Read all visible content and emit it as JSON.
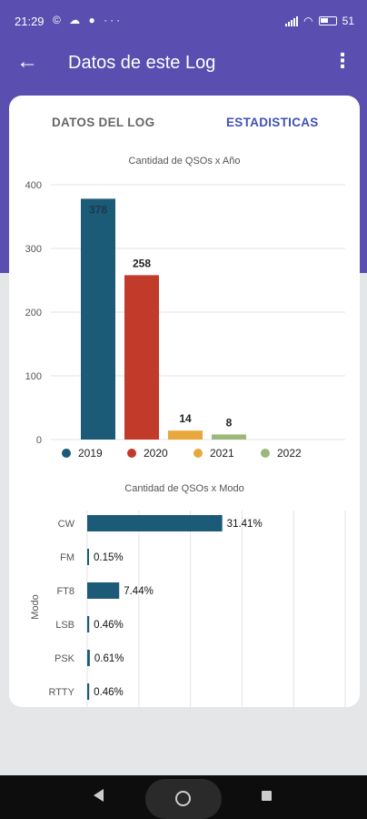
{
  "status": {
    "time": "21:29",
    "left_icons": "© ☁ ● ···",
    "battery": "51"
  },
  "appbar": {
    "title": "Datos de este Log",
    "back_icon": "arrow-back-icon",
    "menu_icon": "more-vert-icon"
  },
  "tabs": [
    {
      "label": "DATOS DEL LOG"
    },
    {
      "label": "ESTADISTICAS"
    }
  ],
  "chart_data": [
    {
      "type": "bar",
      "title": "Cantidad de QSOs x Año",
      "categories": [
        "2019",
        "2020",
        "2021",
        "2022"
      ],
      "values": [
        378,
        258,
        14,
        8
      ],
      "data_labels": [
        "378",
        "258",
        "14",
        "8"
      ],
      "colors": [
        "#1b5b78",
        "#c23a2a",
        "#e8a83c",
        "#9cb87a"
      ],
      "ylim": [
        0,
        400
      ],
      "yticks": [
        "0",
        "100",
        "200",
        "300",
        "400"
      ],
      "legend": "bottom",
      "grid": true
    },
    {
      "type": "bar",
      "orientation": "horizontal",
      "title": "Cantidad de QSOs x Modo",
      "ylabel": "Modo",
      "categories": [
        "CW",
        "FM",
        "FT8",
        "LSB",
        "PSK",
        "RTTY"
      ],
      "values": [
        31.41,
        0.15,
        7.44,
        0.46,
        0.61,
        0.46
      ],
      "data_labels": [
        "31.41%",
        "0.15%",
        "7.44%",
        "0.46%",
        "0.61%",
        "0.46%"
      ],
      "color": "#1b5b78",
      "grid": true
    }
  ]
}
